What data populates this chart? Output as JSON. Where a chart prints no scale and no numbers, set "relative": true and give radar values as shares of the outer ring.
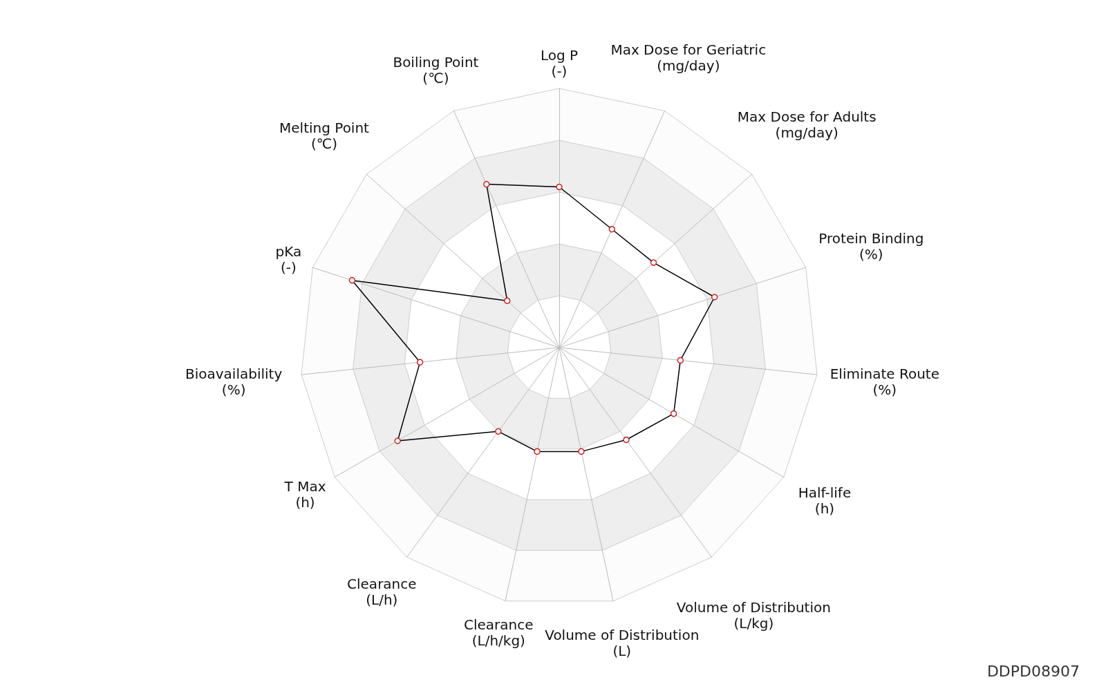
{
  "chart_data": {
    "type": "radar",
    "relative": true,
    "marker": "circle",
    "categories": [
      "Log P\n(-)",
      "Max Dose for Geriatric\n(mg/day)",
      "Max Dose for Adults\n(mg/day)",
      "Protein Binding\n(%)",
      "Eliminate Route\n(%)",
      "Half-life\n(h)",
      "Volume of Distribution\n(L/kg)",
      "Volume of Distribution\n(L)",
      "Clearance\n(L/h/kg)",
      "Clearance\n(L/h)",
      "T Max\n(h)",
      "Bioavailability\n(%)",
      "pKa\n(-)",
      "Melting Point\n(℃)",
      "Boiling Point\n(℃)"
    ],
    "series": [
      {
        "color": "#000000",
        "values": [
          0.62,
          0.5,
          0.49,
          0.63,
          0.47,
          0.51,
          0.44,
          0.41,
          0.41,
          0.4,
          0.72,
          0.54,
          0.84,
          0.27,
          0.69
        ]
      }
    ],
    "annotations": [
      "DDPD08907"
    ]
  }
}
